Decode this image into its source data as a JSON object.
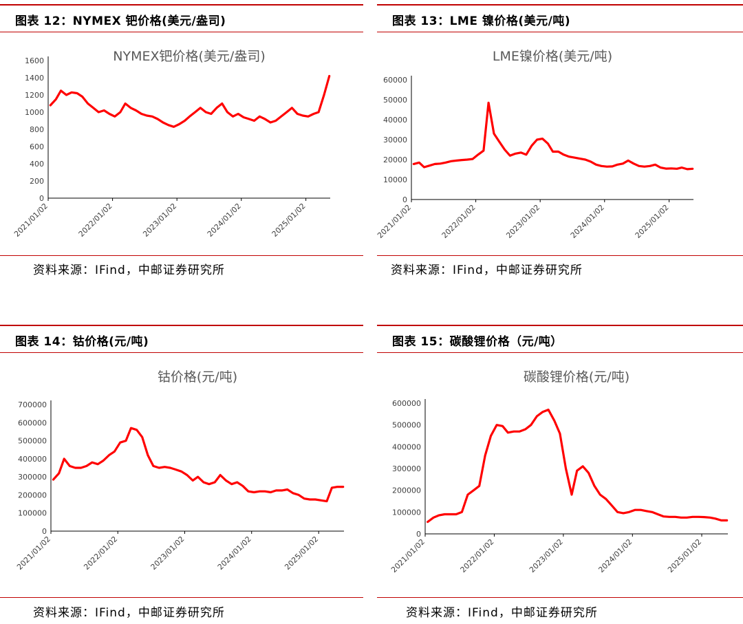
{
  "panels": [
    {
      "header": "图表 12：NYMEX 钯价格(美元/盎司)",
      "source": "资料来源：IFind，中邮证券研究所"
    },
    {
      "header": "图表 13：LME 镍价格(美元/吨)",
      "source": "资料来源：IFind，中邮证券研究所"
    },
    {
      "header": "图表 14：钴价格(元/吨)",
      "source": "资料来源：IFind，中邮证券研究所"
    },
    {
      "header": "图表 15：碳酸锂价格（元/吨）",
      "source": "资料来源：IFind，中邮证券研究所"
    }
  ],
  "chart_data": [
    {
      "type": "line",
      "title": "NYMEX钯价格(美元/盎司)",
      "line_color": "#ff0000",
      "ylim": [
        0,
        1600
      ],
      "yticks": [
        "0",
        "200",
        "400",
        "600",
        "800",
        "1000",
        "1200",
        "1400",
        "1600"
      ],
      "xticks": [
        "2021/01/02",
        "2022/01/02",
        "2023/01/02",
        "2024/01/02",
        "2025/01/02"
      ],
      "xrange": [
        "2021-01-02",
        "2025-05-20"
      ],
      "series": [
        {
          "x": [
            "2021-01",
            "2021-02",
            "2021-03",
            "2021-04",
            "2021-05",
            "2021-06",
            "2021-07",
            "2021-08",
            "2021-09",
            "2021-10",
            "2021-11",
            "2021-12",
            "2022-01",
            "2022-02",
            "2022-03",
            "2022-04",
            "2022-05",
            "2022-06",
            "2022-07",
            "2022-08",
            "2022-09",
            "2022-10",
            "2022-11",
            "2022-12",
            "2023-01",
            "2023-02",
            "2023-03",
            "2023-04",
            "2023-05",
            "2023-06",
            "2023-07",
            "2023-08",
            "2023-09",
            "2023-10",
            "2023-11",
            "2023-12",
            "2024-01",
            "2024-02",
            "2024-03",
            "2024-04",
            "2024-05",
            "2024-06",
            "2024-07",
            "2024-08",
            "2024-09",
            "2024-10",
            "2024-11",
            "2024-12",
            "2025-01",
            "2025-02",
            "2025-03",
            "2025-04",
            "2025-05"
          ],
          "y": [
            1080,
            1150,
            1250,
            1200,
            1230,
            1220,
            1180,
            1100,
            1050,
            1000,
            1020,
            980,
            950,
            1000,
            1100,
            1050,
            1020,
            980,
            960,
            950,
            920,
            880,
            850,
            830,
            860,
            900,
            950,
            1000,
            1050,
            1000,
            980,
            1050,
            1100,
            1000,
            950,
            980,
            940,
            920,
            900,
            950,
            920,
            880,
            900,
            950,
            1000,
            1050,
            980,
            960,
            950,
            980,
            1000,
            1200,
            1420
          ]
        }
      ]
    },
    {
      "type": "line",
      "title": "LME镍价格(美元/吨)",
      "line_color": "#ff0000",
      "ylim": [
        0,
        60000
      ],
      "yticks": [
        "0",
        "10000",
        "20000",
        "30000",
        "40000",
        "50000",
        "60000"
      ],
      "xticks": [
        "2021/01/02",
        "2022/01/02",
        "2023/01/02",
        "2024/01/02",
        "2025/01/02"
      ],
      "xrange": [
        "2021-01-02",
        "2025-05-20"
      ],
      "series": [
        {
          "x": [
            "2021-01",
            "2021-02",
            "2021-03",
            "2021-04",
            "2021-05",
            "2021-06",
            "2021-07",
            "2021-08",
            "2021-09",
            "2021-10",
            "2021-11",
            "2021-12",
            "2022-01",
            "2022-02",
            "2022-03",
            "2022-04",
            "2022-05",
            "2022-06",
            "2022-07",
            "2022-08",
            "2022-09",
            "2022-10",
            "2022-11",
            "2022-12",
            "2023-01",
            "2023-02",
            "2023-03",
            "2023-04",
            "2023-05",
            "2023-06",
            "2023-07",
            "2023-08",
            "2023-09",
            "2023-10",
            "2023-11",
            "2023-12",
            "2024-01",
            "2024-02",
            "2024-03",
            "2024-04",
            "2024-05",
            "2024-06",
            "2024-07",
            "2024-08",
            "2024-09",
            "2024-10",
            "2024-11",
            "2024-12",
            "2025-01",
            "2025-02",
            "2025-03",
            "2025-04",
            "2025-05"
          ],
          "y": [
            17800,
            18500,
            16200,
            17000,
            17800,
            18000,
            18500,
            19200,
            19500,
            19800,
            20000,
            20300,
            22500,
            24500,
            48500,
            33000,
            29000,
            25000,
            22000,
            23000,
            23500,
            22500,
            27000,
            30000,
            30500,
            28000,
            24000,
            24000,
            22500,
            21500,
            21000,
            20500,
            20000,
            19000,
            17500,
            16800,
            16500,
            16600,
            17500,
            18000,
            19500,
            18000,
            16800,
            16500,
            16800,
            17500,
            16000,
            15500,
            15600,
            15400,
            16000,
            15200,
            15400
          ]
        }
      ]
    },
    {
      "type": "line",
      "title": "钴价格(元/吨)",
      "line_color": "#ff0000",
      "ylim": [
        0,
        700000
      ],
      "yticks": [
        "0",
        "100000",
        "200000",
        "300000",
        "400000",
        "500000",
        "600000",
        "700000"
      ],
      "xticks": [
        "2021/01/02",
        "2022/01/02",
        "2023/01/02",
        "2024/01/02",
        "2025/01/02"
      ],
      "xrange": [
        "2021-01-02",
        "2025-05-20"
      ],
      "series": [
        {
          "x": [
            "2021-01",
            "2021-02",
            "2021-03",
            "2021-04",
            "2021-05",
            "2021-06",
            "2021-07",
            "2021-08",
            "2021-09",
            "2021-10",
            "2021-11",
            "2021-12",
            "2022-01",
            "2022-02",
            "2022-03",
            "2022-04",
            "2022-05",
            "2022-06",
            "2022-07",
            "2022-08",
            "2022-09",
            "2022-10",
            "2022-11",
            "2022-12",
            "2023-01",
            "2023-02",
            "2023-03",
            "2023-04",
            "2023-05",
            "2023-06",
            "2023-07",
            "2023-08",
            "2023-09",
            "2023-10",
            "2023-11",
            "2023-12",
            "2024-01",
            "2024-02",
            "2024-03",
            "2024-04",
            "2024-05",
            "2024-06",
            "2024-07",
            "2024-08",
            "2024-09",
            "2024-10",
            "2024-11",
            "2024-12",
            "2025-01",
            "2025-02",
            "2025-03",
            "2025-04",
            "2025-05"
          ],
          "y": [
            285000,
            320000,
            400000,
            360000,
            350000,
            350000,
            360000,
            380000,
            370000,
            390000,
            420000,
            440000,
            490000,
            500000,
            570000,
            560000,
            520000,
            420000,
            360000,
            350000,
            355000,
            350000,
            340000,
            330000,
            310000,
            280000,
            300000,
            270000,
            260000,
            270000,
            310000,
            280000,
            260000,
            270000,
            250000,
            220000,
            215000,
            220000,
            220000,
            215000,
            225000,
            225000,
            230000,
            210000,
            200000,
            180000,
            175000,
            175000,
            170000,
            165000,
            240000,
            245000,
            245000
          ]
        }
      ]
    },
    {
      "type": "line",
      "title": "碳酸锂价格(元/吨)",
      "line_color": "#ff0000",
      "ylim": [
        0,
        600000
      ],
      "yticks": [
        "0",
        "100000",
        "200000",
        "300000",
        "400000",
        "500000",
        "600000"
      ],
      "xticks": [
        "2021/01/02",
        "2022/01/02",
        "2023/01/02",
        "2024/01/02",
        "2025/01/02"
      ],
      "xrange": [
        "2021-01-02",
        "2025-05-20"
      ],
      "series": [
        {
          "x": [
            "2021-01",
            "2021-02",
            "2021-03",
            "2021-04",
            "2021-05",
            "2021-06",
            "2021-07",
            "2021-08",
            "2021-09",
            "2021-10",
            "2021-11",
            "2021-12",
            "2022-01",
            "2022-02",
            "2022-03",
            "2022-04",
            "2022-05",
            "2022-06",
            "2022-07",
            "2022-08",
            "2022-09",
            "2022-10",
            "2022-11",
            "2022-12",
            "2023-01",
            "2023-02",
            "2023-03",
            "2023-04",
            "2023-05",
            "2023-06",
            "2023-07",
            "2023-08",
            "2023-09",
            "2023-10",
            "2023-11",
            "2023-12",
            "2024-01",
            "2024-02",
            "2024-03",
            "2024-04",
            "2024-05",
            "2024-06",
            "2024-07",
            "2024-08",
            "2024-09",
            "2024-10",
            "2024-11",
            "2024-12",
            "2025-01",
            "2025-02",
            "2025-03",
            "2025-04",
            "2025-05"
          ],
          "y": [
            55000,
            75000,
            85000,
            90000,
            90000,
            90000,
            100000,
            180000,
            200000,
            220000,
            360000,
            450000,
            500000,
            495000,
            465000,
            470000,
            470000,
            480000,
            500000,
            540000,
            560000,
            570000,
            520000,
            460000,
            300000,
            180000,
            290000,
            310000,
            280000,
            220000,
            180000,
            160000,
            130000,
            100000,
            95000,
            100000,
            110000,
            110000,
            105000,
            100000,
            90000,
            80000,
            78000,
            78000,
            75000,
            75000,
            78000,
            78000,
            77000,
            75000,
            70000,
            62000,
            62000
          ]
        }
      ]
    }
  ]
}
